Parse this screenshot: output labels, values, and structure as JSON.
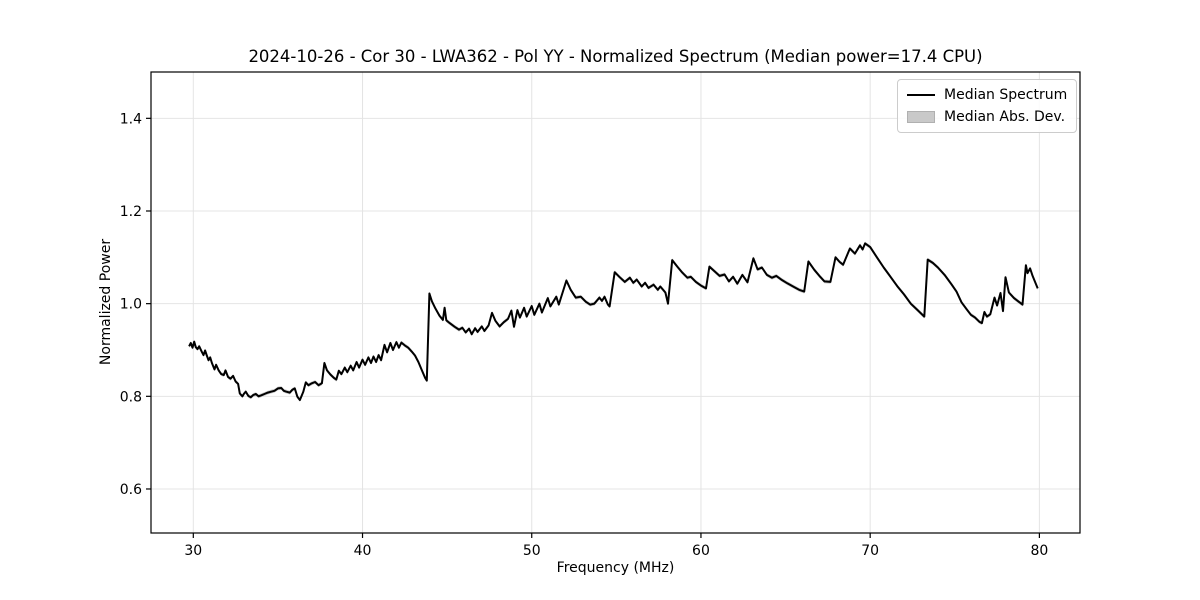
{
  "figure": {
    "title": "2024-10-26 - Cor 30 - LWA362 - Pol YY - Normalized Spectrum (Median power=17.4 CPU)"
  },
  "colors": {
    "line": "#000000",
    "band": "#c9c9c9",
    "grid": "#e4e4e4",
    "spine": "#000000",
    "text": "#000000",
    "legend_border": "#cccccc"
  },
  "chart_data": {
    "type": "line",
    "title": "2024-10-26 - Cor 30 - LWA362 - Pol YY - Normalized Spectrum (Median power=17.4 CPU)",
    "xlabel": "Frequency (MHz)",
    "ylabel": "Normalized Power",
    "xlim": [
      27.5,
      82.4
    ],
    "ylim": [
      0.505,
      1.5
    ],
    "grid": true,
    "legend_position": "upper right",
    "xticks": [
      {
        "v": 30,
        "label": "30"
      },
      {
        "v": 40,
        "label": "40"
      },
      {
        "v": 50,
        "label": "50"
      },
      {
        "v": 60,
        "label": "60"
      },
      {
        "v": 70,
        "label": "70"
      },
      {
        "v": 80,
        "label": "80"
      }
    ],
    "yticks": [
      {
        "v": 0.6,
        "label": "0.6"
      },
      {
        "v": 0.8,
        "label": "0.8"
      },
      {
        "v": 1.0,
        "label": "1.0"
      },
      {
        "v": 1.2,
        "label": "1.2"
      },
      {
        "v": 1.4,
        "label": "1.4"
      }
    ],
    "legend": {
      "entries": [
        {
          "label": "Median Spectrum",
          "type": "line",
          "color": "#000000"
        },
        {
          "label": "Median Abs. Dev.",
          "type": "patch",
          "color": "#c9c9c9"
        }
      ]
    },
    "band_halfwidth": 0.004,
    "series": [
      {
        "name": "Median Spectrum",
        "color": "#000000",
        "points": [
          [
            29.75,
            0.908
          ],
          [
            29.85,
            0.915
          ],
          [
            29.95,
            0.905
          ],
          [
            30.05,
            0.918
          ],
          [
            30.15,
            0.906
          ],
          [
            30.25,
            0.902
          ],
          [
            30.35,
            0.908
          ],
          [
            30.5,
            0.896
          ],
          [
            30.6,
            0.889
          ],
          [
            30.7,
            0.899
          ],
          [
            30.8,
            0.888
          ],
          [
            30.9,
            0.878
          ],
          [
            31.0,
            0.884
          ],
          [
            31.1,
            0.872
          ],
          [
            31.25,
            0.858
          ],
          [
            31.35,
            0.868
          ],
          [
            31.5,
            0.856
          ],
          [
            31.65,
            0.848
          ],
          [
            31.8,
            0.846
          ],
          [
            31.9,
            0.856
          ],
          [
            32.05,
            0.842
          ],
          [
            32.2,
            0.838
          ],
          [
            32.35,
            0.844
          ],
          [
            32.5,
            0.832
          ],
          [
            32.65,
            0.827
          ],
          [
            32.75,
            0.806
          ],
          [
            32.9,
            0.8
          ],
          [
            33.0,
            0.806
          ],
          [
            33.1,
            0.81
          ],
          [
            33.25,
            0.801
          ],
          [
            33.4,
            0.798
          ],
          [
            33.55,
            0.803
          ],
          [
            33.7,
            0.805
          ],
          [
            33.85,
            0.8
          ],
          [
            34.0,
            0.802
          ],
          [
            34.2,
            0.805
          ],
          [
            34.4,
            0.808
          ],
          [
            34.6,
            0.81
          ],
          [
            34.8,
            0.812
          ],
          [
            35.0,
            0.817
          ],
          [
            35.2,
            0.818
          ],
          [
            35.35,
            0.812
          ],
          [
            35.5,
            0.81
          ],
          [
            35.7,
            0.808
          ],
          [
            35.85,
            0.814
          ],
          [
            36.0,
            0.817
          ],
          [
            36.15,
            0.799
          ],
          [
            36.3,
            0.792
          ],
          [
            36.5,
            0.81
          ],
          [
            36.65,
            0.83
          ],
          [
            36.8,
            0.824
          ],
          [
            37.0,
            0.828
          ],
          [
            37.2,
            0.831
          ],
          [
            37.4,
            0.824
          ],
          [
            37.6,
            0.828
          ],
          [
            37.75,
            0.872
          ],
          [
            37.9,
            0.856
          ],
          [
            38.1,
            0.847
          ],
          [
            38.3,
            0.84
          ],
          [
            38.45,
            0.836
          ],
          [
            38.6,
            0.855
          ],
          [
            38.75,
            0.848
          ],
          [
            38.95,
            0.862
          ],
          [
            39.1,
            0.852
          ],
          [
            39.3,
            0.866
          ],
          [
            39.45,
            0.856
          ],
          [
            39.65,
            0.874
          ],
          [
            39.8,
            0.862
          ],
          [
            40.0,
            0.879
          ],
          [
            40.15,
            0.868
          ],
          [
            40.35,
            0.884
          ],
          [
            40.5,
            0.872
          ],
          [
            40.65,
            0.886
          ],
          [
            40.8,
            0.874
          ],
          [
            40.95,
            0.889
          ],
          [
            41.1,
            0.878
          ],
          [
            41.3,
            0.911
          ],
          [
            41.45,
            0.895
          ],
          [
            41.65,
            0.915
          ],
          [
            41.8,
            0.9
          ],
          [
            42.0,
            0.917
          ],
          [
            42.15,
            0.905
          ],
          [
            42.3,
            0.916
          ],
          [
            42.5,
            0.91
          ],
          [
            42.7,
            0.905
          ],
          [
            42.9,
            0.897
          ],
          [
            43.1,
            0.888
          ],
          [
            43.3,
            0.874
          ],
          [
            43.5,
            0.857
          ],
          [
            43.7,
            0.84
          ],
          [
            43.8,
            0.834
          ],
          [
            43.95,
            1.022
          ],
          [
            44.1,
            1.005
          ],
          [
            44.3,
            0.99
          ],
          [
            44.55,
            0.974
          ],
          [
            44.75,
            0.965
          ],
          [
            44.85,
            0.991
          ],
          [
            44.95,
            0.964
          ],
          [
            45.15,
            0.958
          ],
          [
            45.45,
            0.95
          ],
          [
            45.7,
            0.944
          ],
          [
            45.9,
            0.948
          ],
          [
            46.1,
            0.938
          ],
          [
            46.3,
            0.946
          ],
          [
            46.45,
            0.934
          ],
          [
            46.65,
            0.947
          ],
          [
            46.8,
            0.939
          ],
          [
            47.05,
            0.951
          ],
          [
            47.2,
            0.941
          ],
          [
            47.45,
            0.953
          ],
          [
            47.65,
            0.98
          ],
          [
            47.85,
            0.963
          ],
          [
            48.1,
            0.951
          ],
          [
            48.35,
            0.96
          ],
          [
            48.6,
            0.967
          ],
          [
            48.8,
            0.985
          ],
          [
            48.95,
            0.95
          ],
          [
            49.15,
            0.986
          ],
          [
            49.3,
            0.97
          ],
          [
            49.55,
            0.991
          ],
          [
            49.7,
            0.972
          ],
          [
            50.0,
            0.995
          ],
          [
            50.15,
            0.976
          ],
          [
            50.45,
            1.0
          ],
          [
            50.6,
            0.981
          ],
          [
            50.95,
            1.012
          ],
          [
            51.1,
            0.994
          ],
          [
            51.45,
            1.015
          ],
          [
            51.6,
            0.998
          ],
          [
            52.05,
            1.05
          ],
          [
            52.3,
            1.03
          ],
          [
            52.6,
            1.013
          ],
          [
            52.9,
            1.015
          ],
          [
            53.2,
            1.004
          ],
          [
            53.45,
            0.998
          ],
          [
            53.7,
            1.0
          ],
          [
            54.0,
            1.013
          ],
          [
            54.15,
            1.006
          ],
          [
            54.3,
            1.015
          ],
          [
            54.5,
            0.998
          ],
          [
            54.6,
            0.994
          ],
          [
            54.9,
            1.068
          ],
          [
            55.2,
            1.057
          ],
          [
            55.5,
            1.047
          ],
          [
            55.8,
            1.056
          ],
          [
            56.0,
            1.045
          ],
          [
            56.2,
            1.052
          ],
          [
            56.5,
            1.037
          ],
          [
            56.7,
            1.045
          ],
          [
            56.9,
            1.034
          ],
          [
            57.2,
            1.041
          ],
          [
            57.45,
            1.03
          ],
          [
            57.6,
            1.037
          ],
          [
            57.9,
            1.024
          ],
          [
            58.05,
            1.0
          ],
          [
            58.3,
            1.094
          ],
          [
            58.6,
            1.08
          ],
          [
            58.9,
            1.067
          ],
          [
            59.2,
            1.056
          ],
          [
            59.4,
            1.058
          ],
          [
            59.7,
            1.047
          ],
          [
            60.0,
            1.039
          ],
          [
            60.3,
            1.033
          ],
          [
            60.5,
            1.08
          ],
          [
            60.8,
            1.07
          ],
          [
            61.1,
            1.06
          ],
          [
            61.4,
            1.063
          ],
          [
            61.65,
            1.048
          ],
          [
            61.9,
            1.058
          ],
          [
            62.15,
            1.043
          ],
          [
            62.45,
            1.062
          ],
          [
            62.75,
            1.046
          ],
          [
            63.1,
            1.098
          ],
          [
            63.35,
            1.074
          ],
          [
            63.6,
            1.078
          ],
          [
            63.9,
            1.062
          ],
          [
            64.2,
            1.056
          ],
          [
            64.45,
            1.06
          ],
          [
            64.75,
            1.052
          ],
          [
            65.1,
            1.044
          ],
          [
            65.5,
            1.036
          ],
          [
            65.8,
            1.03
          ],
          [
            66.1,
            1.026
          ],
          [
            66.35,
            1.091
          ],
          [
            66.7,
            1.073
          ],
          [
            67.0,
            1.06
          ],
          [
            67.3,
            1.048
          ],
          [
            67.65,
            1.047
          ],
          [
            67.95,
            1.1
          ],
          [
            68.2,
            1.09
          ],
          [
            68.4,
            1.084
          ],
          [
            68.8,
            1.119
          ],
          [
            69.1,
            1.108
          ],
          [
            69.4,
            1.126
          ],
          [
            69.55,
            1.117
          ],
          [
            69.7,
            1.13
          ],
          [
            70.0,
            1.122
          ],
          [
            70.4,
            1.1
          ],
          [
            70.8,
            1.078
          ],
          [
            71.2,
            1.058
          ],
          [
            71.6,
            1.038
          ],
          [
            72.0,
            1.02
          ],
          [
            72.4,
            1.0
          ],
          [
            72.8,
            0.986
          ],
          [
            73.2,
            0.972
          ],
          [
            73.4,
            1.095
          ],
          [
            73.7,
            1.088
          ],
          [
            74.0,
            1.078
          ],
          [
            74.4,
            1.062
          ],
          [
            74.8,
            1.042
          ],
          [
            75.1,
            1.026
          ],
          [
            75.4,
            1.003
          ],
          [
            75.7,
            0.988
          ],
          [
            75.95,
            0.976
          ],
          [
            76.2,
            0.97
          ],
          [
            76.45,
            0.961
          ],
          [
            76.6,
            0.958
          ],
          [
            76.75,
            0.982
          ],
          [
            76.9,
            0.972
          ],
          [
            77.1,
            0.977
          ],
          [
            77.35,
            1.013
          ],
          [
            77.5,
            0.996
          ],
          [
            77.7,
            1.023
          ],
          [
            77.85,
            0.984
          ],
          [
            78.0,
            1.057
          ],
          [
            78.2,
            1.024
          ],
          [
            78.5,
            1.012
          ],
          [
            78.75,
            1.005
          ],
          [
            79.0,
            0.998
          ],
          [
            79.2,
            1.083
          ],
          [
            79.3,
            1.066
          ],
          [
            79.45,
            1.076
          ],
          [
            79.6,
            1.06
          ],
          [
            79.75,
            1.046
          ],
          [
            79.9,
            1.033
          ]
        ]
      }
    ]
  }
}
